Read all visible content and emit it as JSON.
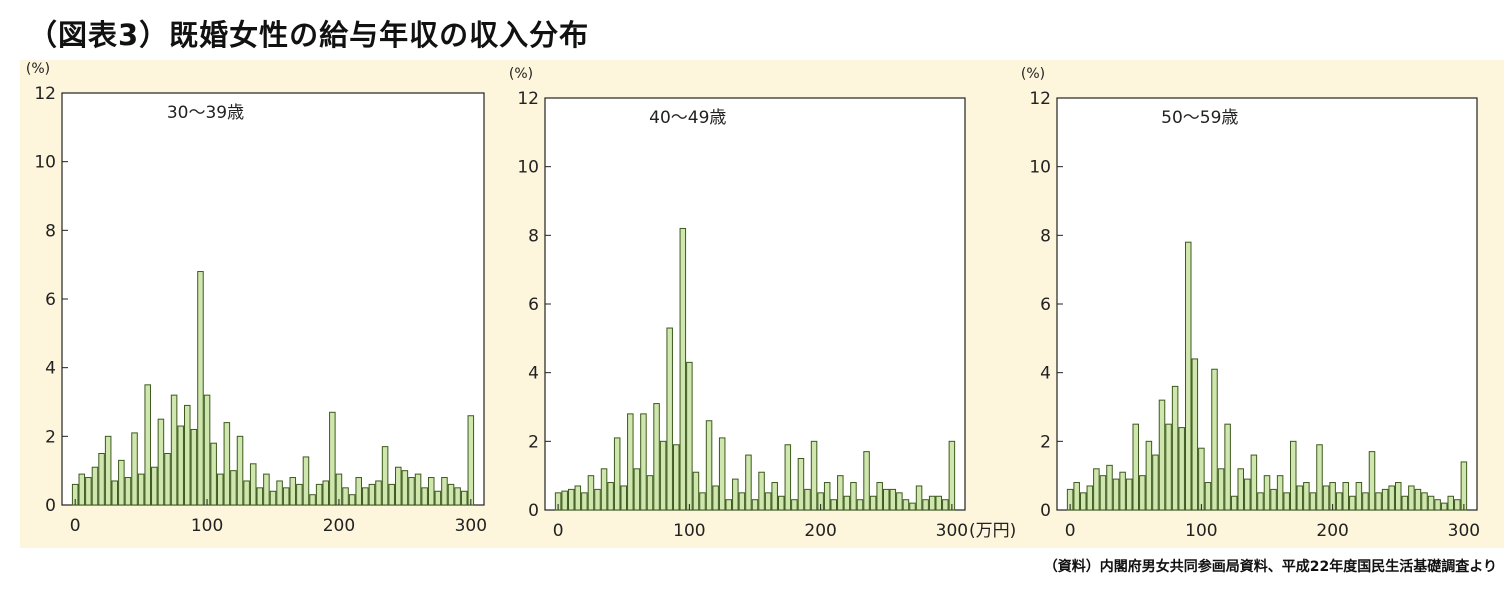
{
  "title": "（図表3）既婚女性の給与年収の収入分布",
  "source": "（資料）内閣府男女共同参画局資料、平成22年度国民生活基礎調査より",
  "colors": {
    "panel_bg": "#fdf6dc",
    "bar_fill": "#cfe6ae",
    "bar_stroke": "#3d5a1e"
  },
  "chart_data": [
    {
      "type": "bar",
      "title": "30～39歳",
      "ylabel": "(%)",
      "xlabel": "",
      "ylim": [
        0,
        12
      ],
      "yticks": [
        "0",
        "2",
        "4",
        "6",
        "8",
        "10",
        "12"
      ],
      "xlim": [
        -10,
        310
      ],
      "xticks": [
        "0",
        "100",
        "200",
        "300"
      ],
      "bin_width": 5,
      "x": [
        0,
        5,
        10,
        15,
        20,
        25,
        30,
        35,
        40,
        45,
        50,
        55,
        60,
        65,
        70,
        75,
        80,
        85,
        90,
        95,
        100,
        105,
        110,
        115,
        120,
        125,
        130,
        135,
        140,
        145,
        150,
        155,
        160,
        165,
        170,
        175,
        180,
        185,
        190,
        195,
        200,
        205,
        210,
        215,
        220,
        225,
        230,
        235,
        240,
        245,
        250,
        255,
        260,
        265,
        270,
        275,
        280,
        285,
        290,
        295,
        300
      ],
      "values": [
        0.6,
        0.9,
        0.8,
        1.1,
        1.5,
        2.0,
        0.7,
        1.3,
        0.8,
        2.1,
        0.9,
        3.5,
        1.1,
        2.5,
        1.5,
        3.2,
        2.3,
        2.9,
        2.2,
        6.8,
        3.2,
        1.8,
        0.9,
        2.4,
        1.0,
        2.0,
        0.7,
        1.2,
        0.5,
        0.9,
        0.4,
        0.7,
        0.5,
        0.8,
        0.6,
        1.4,
        0.3,
        0.6,
        0.7,
        2.7,
        0.9,
        0.5,
        0.3,
        0.8,
        0.5,
        0.6,
        0.7,
        1.7,
        0.6,
        1.1,
        1.0,
        0.8,
        0.9,
        0.5,
        0.8,
        0.4,
        0.8,
        0.6,
        0.5,
        0.4,
        2.6
      ]
    },
    {
      "type": "bar",
      "title": "40～49歳",
      "ylabel": "(%)",
      "xlabel": "(万円)",
      "ylim": [
        0,
        12
      ],
      "yticks": [
        "0",
        "2",
        "4",
        "6",
        "8",
        "10",
        "12"
      ],
      "xlim": [
        -10,
        310
      ],
      "xticks": [
        "0",
        "100",
        "200",
        "300"
      ],
      "bin_width": 5,
      "x": [
        0,
        5,
        10,
        15,
        20,
        25,
        30,
        35,
        40,
        45,
        50,
        55,
        60,
        65,
        70,
        75,
        80,
        85,
        90,
        95,
        100,
        105,
        110,
        115,
        120,
        125,
        130,
        135,
        140,
        145,
        150,
        155,
        160,
        165,
        170,
        175,
        180,
        185,
        190,
        195,
        200,
        205,
        210,
        215,
        220,
        225,
        230,
        235,
        240,
        245,
        250,
        255,
        260,
        265,
        270,
        275,
        280,
        285,
        290,
        295,
        300
      ],
      "values": [
        0.5,
        0.55,
        0.6,
        0.7,
        0.5,
        1.0,
        0.6,
        1.2,
        0.8,
        2.1,
        0.7,
        2.8,
        1.2,
        2.8,
        1.0,
        3.1,
        2.0,
        5.3,
        1.9,
        8.2,
        4.3,
        1.1,
        0.5,
        2.6,
        0.7,
        2.1,
        0.3,
        0.9,
        0.5,
        1.6,
        0.3,
        1.1,
        0.5,
        0.8,
        0.4,
        1.9,
        0.3,
        1.5,
        0.6,
        2.0,
        0.5,
        0.8,
        0.3,
        1.0,
        0.4,
        0.8,
        0.3,
        1.7,
        0.4,
        0.8,
        0.6,
        0.6,
        0.5,
        0.3,
        0.2,
        0.7,
        0.3,
        0.4,
        0.4,
        0.3,
        2.0
      ]
    },
    {
      "type": "bar",
      "title": "50～59歳",
      "ylabel": "(%)",
      "xlabel": "",
      "ylim": [
        0,
        12
      ],
      "yticks": [
        "0",
        "2",
        "4",
        "6",
        "8",
        "10",
        "12"
      ],
      "xlim": [
        -10,
        310
      ],
      "xticks": [
        "0",
        "100",
        "200",
        "300"
      ],
      "bin_width": 5,
      "x": [
        0,
        5,
        10,
        15,
        20,
        25,
        30,
        35,
        40,
        45,
        50,
        55,
        60,
        65,
        70,
        75,
        80,
        85,
        90,
        95,
        100,
        105,
        110,
        115,
        120,
        125,
        130,
        135,
        140,
        145,
        150,
        155,
        160,
        165,
        170,
        175,
        180,
        185,
        190,
        195,
        200,
        205,
        210,
        215,
        220,
        225,
        230,
        235,
        240,
        245,
        250,
        255,
        260,
        265,
        270,
        275,
        280,
        285,
        290,
        295,
        300
      ],
      "values": [
        0.6,
        0.8,
        0.5,
        0.7,
        1.2,
        1.0,
        1.3,
        0.9,
        1.1,
        0.9,
        2.5,
        1.0,
        2.0,
        1.6,
        3.2,
        2.5,
        3.6,
        2.4,
        7.8,
        4.4,
        1.8,
        0.8,
        4.1,
        1.2,
        2.5,
        0.4,
        1.2,
        0.9,
        1.6,
        0.5,
        1.0,
        0.6,
        1.0,
        0.5,
        2.0,
        0.7,
        0.8,
        0.5,
        1.9,
        0.7,
        0.8,
        0.5,
        0.8,
        0.4,
        0.8,
        0.5,
        1.7,
        0.5,
        0.6,
        0.7,
        0.8,
        0.4,
        0.7,
        0.6,
        0.5,
        0.4,
        0.3,
        0.2,
        0.4,
        0.3,
        1.4
      ]
    }
  ]
}
